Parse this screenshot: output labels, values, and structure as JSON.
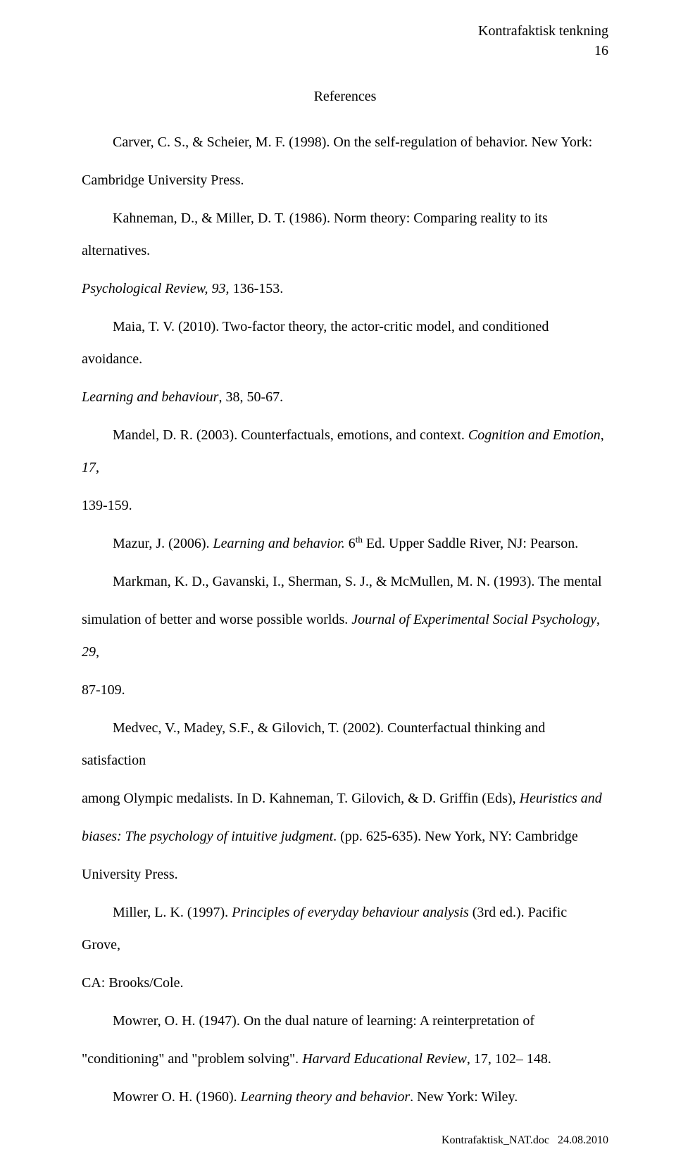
{
  "header": {
    "running_head": "Kontrafaktisk tenkning",
    "page_number": "16"
  },
  "section_title": "References",
  "references": {
    "ref1": {
      "authors": "Carver, C. S., & Scheier, M. F. (1998). On the self-regulation of behavior. New York:",
      "continuation": "Cambridge University Press."
    },
    "ref2": {
      "authors": "Kahneman, D., & Miller, D. T. (1986). Norm theory: Comparing reality to its alternatives.",
      "journal_part": "Psychological Review, 93,",
      "pages": " 136-153."
    },
    "ref3": {
      "authors": "Maia, T. V. (2010). Two-factor theory, the actor-critic model, and conditioned avoidance.",
      "journal_part": "Learning and behaviour",
      "pages": ", 38, 50-67."
    },
    "ref4": {
      "authors": "Mandel, D. R. (2003). Counterfactuals, emotions, and context. ",
      "journal_part": "Cognition and Emotion",
      "pages_pre": ", ",
      "volume": "17",
      "pages": ",",
      "continuation": "139-159."
    },
    "ref5": {
      "authors": "Mazur, J. (2006). ",
      "title_italic": " Learning and behavior.",
      "edition_prefix": " 6",
      "edition_suffix": "th",
      "rest": " Ed. Upper Saddle River, NJ: Pearson."
    },
    "ref6": {
      "authors": "Markman, K. D., Gavanski, I., Sherman, S. J., & McMullen, M. N. (1993). The mental",
      "continuation1": "simulation of better and worse possible worlds. ",
      "journal_part": "Journal of Experimental Social Psychology",
      "volume_pages": ", ",
      "volume": "29",
      "comma": ",",
      "continuation2": "87-109."
    },
    "ref7": {
      "authors": "Medvec, V., Madey, S.F., & Gilovich, T. (2002). Counterfactual thinking and satisfaction",
      "continuation1": "among Olympic medalists. In D. Kahneman, T. Gilovich, & D. Griffin (Eds), ",
      "title_italic1": "Heuristics and",
      "title_italic2": "biases: The psychology of intuitive judgment",
      "rest": ". (pp. 625-635). New York, NY: Cambridge",
      "continuation2": "University Press."
    },
    "ref8": {
      "authors": "Miller, L. K. (1997). ",
      "title_italic": "Principles of everyday behaviour analysis",
      "rest": " (3rd ed.). Pacific Grove,",
      "continuation": "CA: Brooks/Cole."
    },
    "ref9": {
      "authors": "Mowrer, O. H. (1947). On the dual nature of learning: A reinterpretation of",
      "continuation_pre": "\"conditioning\" and \"problem solving\". ",
      "journal_part": "Harvard Educational Review",
      "rest": ", 17, 102– 148."
    },
    "ref10": {
      "authors": "Mowrer O. H. (1960). ",
      "title_italic": "Learning theory and behavior",
      "rest": ". New York: Wiley."
    }
  },
  "footer": {
    "filename": "Kontrafaktisk_NAT.doc",
    "date": "24.08.2010"
  }
}
